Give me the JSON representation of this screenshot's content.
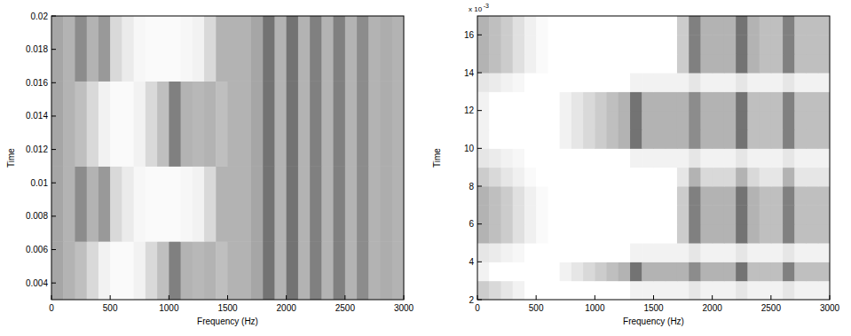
{
  "chart_data": [
    {
      "type": "heatmap",
      "xlabel": "Frequency (Hz)",
      "ylabel": "Time",
      "xlim": [
        0,
        3000
      ],
      "xticks": [
        0,
        500,
        1000,
        1500,
        2000,
        2500,
        3000
      ],
      "ylim": [
        0.003,
        0.02
      ],
      "yticks": [
        0.004,
        0.006,
        0.008,
        0.01,
        0.012,
        0.014,
        0.016,
        0.018,
        0.02
      ],
      "x_edges": [
        0,
        100,
        200,
        300,
        400,
        500,
        600,
        700,
        800,
        900,
        1000,
        1100,
        1200,
        1300,
        1400,
        1500,
        1600,
        1700,
        1800,
        1900,
        2000,
        2100,
        2200,
        2300,
        2400,
        2500,
        2600,
        2700,
        2800,
        2900,
        3000
      ],
      "y_edges": [
        0.003,
        0.0065,
        0.011,
        0.0161,
        0.02
      ],
      "cells": [
        [
          0.35,
          0.3,
          0.25,
          0.15,
          0.05,
          0.02,
          0.02,
          0.05,
          0.15,
          0.25,
          0.5,
          0.3,
          0.28,
          0.3,
          0.25,
          0.3,
          0.3,
          0.35,
          0.55,
          0.3,
          0.55,
          0.3,
          0.5,
          0.3,
          0.5,
          0.3,
          0.45,
          0.3,
          0.32,
          0.3
        ],
        [
          0.35,
          0.3,
          0.45,
          0.3,
          0.4,
          0.15,
          0.08,
          0.03,
          0.02,
          0.02,
          0.02,
          0.03,
          0.05,
          0.15,
          0.3,
          0.3,
          0.3,
          0.35,
          0.55,
          0.3,
          0.55,
          0.3,
          0.5,
          0.3,
          0.5,
          0.3,
          0.45,
          0.3,
          0.32,
          0.3
        ],
        [
          0.35,
          0.3,
          0.25,
          0.15,
          0.05,
          0.02,
          0.02,
          0.05,
          0.15,
          0.25,
          0.5,
          0.3,
          0.28,
          0.3,
          0.25,
          0.3,
          0.3,
          0.35,
          0.55,
          0.3,
          0.55,
          0.3,
          0.5,
          0.3,
          0.5,
          0.3,
          0.45,
          0.3,
          0.32,
          0.3
        ],
        [
          0.35,
          0.3,
          0.45,
          0.3,
          0.4,
          0.15,
          0.08,
          0.03,
          0.02,
          0.02,
          0.02,
          0.03,
          0.05,
          0.15,
          0.3,
          0.3,
          0.3,
          0.35,
          0.55,
          0.3,
          0.55,
          0.3,
          0.5,
          0.3,
          0.5,
          0.3,
          0.45,
          0.3,
          0.32,
          0.3
        ]
      ]
    },
    {
      "type": "heatmap",
      "xlabel": "Frequency (Hz)",
      "ylabel": "Time",
      "y_multiplier": {
        "base": "x 10",
        "exponent": "-3"
      },
      "xlim": [
        0,
        3000
      ],
      "xticks": [
        0,
        500,
        1000,
        1500,
        2000,
        2500,
        3000
      ],
      "ylim": [
        2,
        17
      ],
      "yticks": [
        2,
        4,
        6,
        8,
        10,
        12,
        14,
        16
      ],
      "x_edges": [
        0,
        100,
        200,
        300,
        400,
        500,
        600,
        700,
        800,
        900,
        1000,
        1100,
        1200,
        1300,
        1400,
        1500,
        1600,
        1700,
        1800,
        1900,
        2000,
        2100,
        2200,
        2300,
        2400,
        2500,
        2600,
        2700,
        2800,
        2900,
        3000
      ],
      "y_edges": [
        2,
        3,
        4,
        5,
        6,
        7,
        8,
        9,
        10,
        11,
        12,
        13,
        14,
        15,
        16,
        17
      ],
      "cells": [
        [
          0.2,
          0.15,
          0.1,
          0.05,
          0,
          0,
          0,
          0,
          0,
          0,
          0,
          0,
          0,
          0.05,
          0.05,
          0.05,
          0.05,
          0.05,
          0.1,
          0.05,
          0.05,
          0.05,
          0.1,
          0.05,
          0.05,
          0.05,
          0.1,
          0.05,
          0.05,
          0.05
        ],
        [
          0.05,
          0,
          0,
          0,
          0,
          0,
          0,
          0.05,
          0.1,
          0.15,
          0.2,
          0.25,
          0.3,
          0.55,
          0.3,
          0.3,
          0.3,
          0.3,
          0.45,
          0.3,
          0.3,
          0.3,
          0.55,
          0.25,
          0.25,
          0.25,
          0.5,
          0.25,
          0.25,
          0.25
        ],
        [
          0.1,
          0.08,
          0.05,
          0.03,
          0,
          0,
          0,
          0,
          0,
          0,
          0,
          0,
          0,
          0.05,
          0.05,
          0.05,
          0.05,
          0.05,
          0.1,
          0.05,
          0.05,
          0.05,
          0.1,
          0.05,
          0.05,
          0.05,
          0.1,
          0.05,
          0.05,
          0.05
        ],
        [
          0.3,
          0.25,
          0.2,
          0.12,
          0.06,
          0.02,
          0,
          0,
          0,
          0,
          0,
          0,
          0,
          0,
          0,
          0,
          0,
          0.2,
          0.5,
          0.3,
          0.3,
          0.3,
          0.55,
          0.3,
          0.25,
          0.25,
          0.5,
          0.25,
          0.25,
          0.25
        ],
        [
          0.3,
          0.25,
          0.2,
          0.12,
          0.06,
          0.02,
          0,
          0,
          0,
          0,
          0,
          0,
          0,
          0,
          0,
          0,
          0,
          0.2,
          0.5,
          0.3,
          0.3,
          0.3,
          0.55,
          0.3,
          0.25,
          0.25,
          0.5,
          0.25,
          0.25,
          0.25
        ],
        [
          0.3,
          0.25,
          0.2,
          0.12,
          0.06,
          0.02,
          0,
          0,
          0,
          0,
          0,
          0,
          0,
          0,
          0,
          0,
          0,
          0.2,
          0.5,
          0.3,
          0.3,
          0.3,
          0.55,
          0.3,
          0.25,
          0.25,
          0.5,
          0.25,
          0.25,
          0.25
        ],
        [
          0.2,
          0.15,
          0.1,
          0.06,
          0.02,
          0,
          0,
          0,
          0,
          0,
          0,
          0,
          0,
          0,
          0,
          0,
          0,
          0.1,
          0.3,
          0.15,
          0.15,
          0.15,
          0.3,
          0.15,
          0.1,
          0.1,
          0.3,
          0.1,
          0.1,
          0.1
        ],
        [
          0.1,
          0.08,
          0.05,
          0.03,
          0,
          0,
          0,
          0,
          0,
          0,
          0,
          0,
          0,
          0.05,
          0.05,
          0.05,
          0.05,
          0.05,
          0.1,
          0.05,
          0.05,
          0.05,
          0.1,
          0.05,
          0.05,
          0.05,
          0.1,
          0.05,
          0.05,
          0.05
        ],
        [
          0.05,
          0,
          0,
          0,
          0,
          0,
          0,
          0.05,
          0.1,
          0.15,
          0.2,
          0.25,
          0.3,
          0.55,
          0.3,
          0.3,
          0.3,
          0.3,
          0.45,
          0.3,
          0.3,
          0.3,
          0.55,
          0.25,
          0.25,
          0.25,
          0.5,
          0.25,
          0.25,
          0.25
        ],
        [
          0.05,
          0,
          0,
          0,
          0,
          0,
          0,
          0.05,
          0.1,
          0.15,
          0.2,
          0.25,
          0.3,
          0.55,
          0.3,
          0.3,
          0.3,
          0.3,
          0.45,
          0.3,
          0.3,
          0.3,
          0.55,
          0.25,
          0.25,
          0.25,
          0.5,
          0.25,
          0.25,
          0.25
        ],
        [
          0.05,
          0,
          0,
          0,
          0,
          0,
          0,
          0.05,
          0.1,
          0.15,
          0.2,
          0.25,
          0.3,
          0.55,
          0.3,
          0.3,
          0.3,
          0.3,
          0.45,
          0.3,
          0.3,
          0.3,
          0.55,
          0.25,
          0.25,
          0.25,
          0.5,
          0.25,
          0.25,
          0.25
        ],
        [
          0.1,
          0.08,
          0.05,
          0.03,
          0,
          0,
          0,
          0,
          0,
          0,
          0,
          0,
          0,
          0.05,
          0.05,
          0.05,
          0.05,
          0.05,
          0.1,
          0.05,
          0.05,
          0.05,
          0.1,
          0.05,
          0.05,
          0.05,
          0.1,
          0.05,
          0.05,
          0.05
        ],
        [
          0.3,
          0.25,
          0.2,
          0.12,
          0.06,
          0.02,
          0,
          0,
          0,
          0,
          0,
          0,
          0,
          0,
          0,
          0,
          0,
          0.2,
          0.5,
          0.3,
          0.3,
          0.3,
          0.55,
          0.3,
          0.25,
          0.25,
          0.5,
          0.25,
          0.25,
          0.25
        ],
        [
          0.3,
          0.25,
          0.2,
          0.12,
          0.06,
          0.02,
          0,
          0,
          0,
          0,
          0,
          0,
          0,
          0,
          0,
          0,
          0,
          0.2,
          0.5,
          0.3,
          0.3,
          0.3,
          0.55,
          0.3,
          0.25,
          0.25,
          0.5,
          0.25,
          0.25,
          0.25
        ],
        [
          0.3,
          0.25,
          0.2,
          0.12,
          0.06,
          0.02,
          0,
          0,
          0,
          0,
          0,
          0,
          0,
          0,
          0,
          0,
          0,
          0.2,
          0.5,
          0.3,
          0.3,
          0.3,
          0.55,
          0.3,
          0.25,
          0.25,
          0.5,
          0.25,
          0.25,
          0.25
        ]
      ]
    }
  ]
}
